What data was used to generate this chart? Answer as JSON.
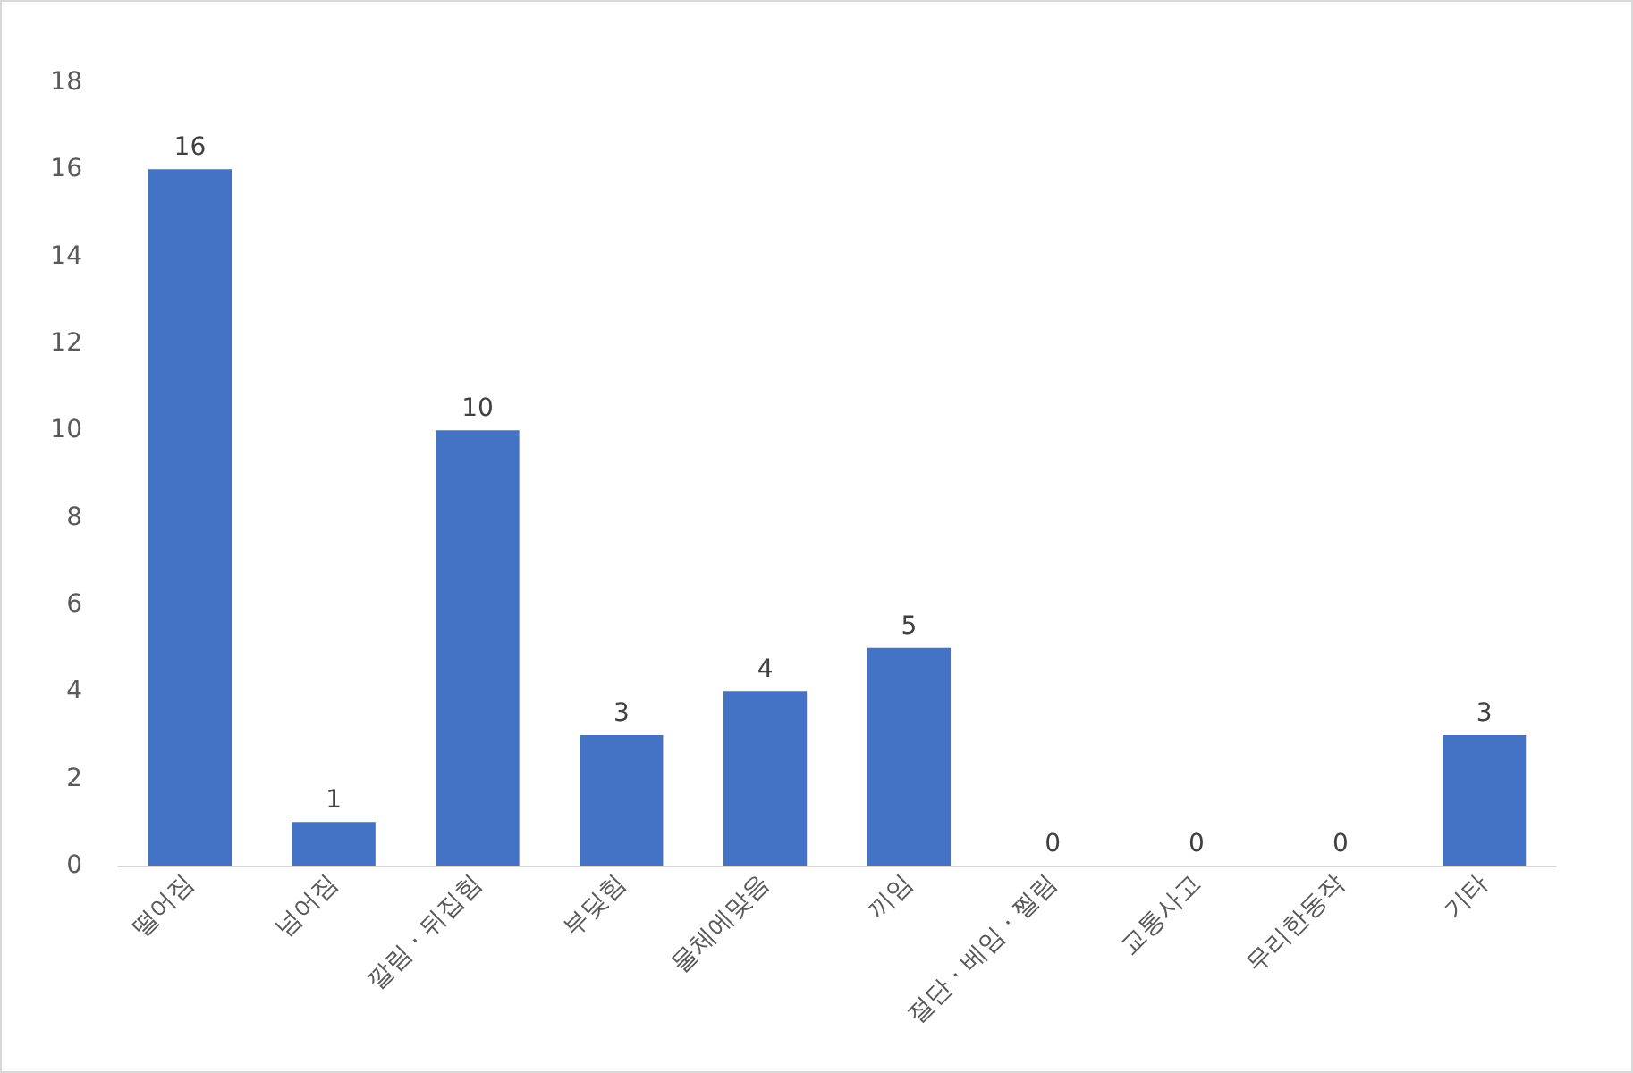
{
  "chart_data": {
    "type": "bar",
    "categories": [
      "떨어짐",
      "넘어짐",
      "깔림 · 뒤집힘",
      "부딪힘",
      "물체에맞음",
      "끼임",
      "절단 · 베임 · 찔림",
      "교통사고",
      "무리한동작",
      "기타"
    ],
    "values": [
      16,
      1,
      10,
      3,
      4,
      5,
      0,
      0,
      0,
      3
    ],
    "color": "#4472c4",
    "ylim": [
      0,
      18
    ],
    "yticks": [
      0,
      2,
      4,
      6,
      8,
      10,
      12,
      14,
      16,
      18
    ],
    "grid": false,
    "data_labels": true
  }
}
